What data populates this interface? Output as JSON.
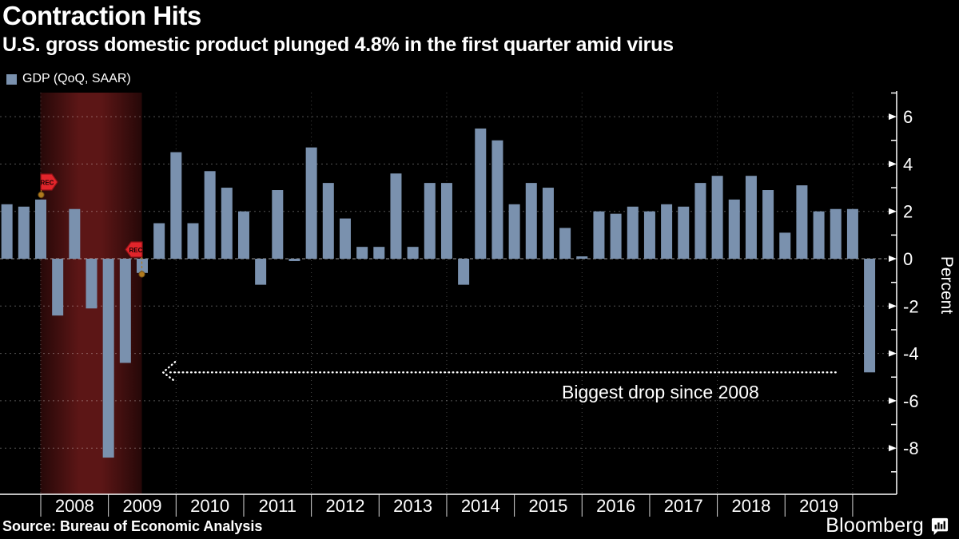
{
  "header": {
    "title": "Contraction Hits",
    "subtitle": "U.S. gross domestic product plunged 4.8% in the first quarter amid virus"
  },
  "legend": {
    "label": "GDP (QoQ, SAAR)"
  },
  "annotation": {
    "text": "Biggest drop since 2008"
  },
  "footer": {
    "source": "Source: Bureau of Economic Analysis",
    "brand": "Bloomberg"
  },
  "colors": {
    "background": "#000000",
    "bar": "#7a91ae",
    "recession_mid": "#5c1616",
    "recession_edge": "#260808",
    "flag_red": "#e2252b",
    "flag_border": "#8f1216",
    "marker_amber": "#b07a1e",
    "marker_amber_edge": "#6e4c12",
    "grid": "#ffffff",
    "axis": "#ffffff",
    "text": "#ffffff"
  },
  "chart_data": {
    "type": "bar",
    "title": "Contraction Hits",
    "subtitle": "U.S. gross domestic product plunged 4.8% in the first quarter amid virus",
    "series_name": "GDP (QoQ, SAAR)",
    "ylabel": "Percent",
    "ylim": [
      -10,
      7
    ],
    "yticks": [
      6,
      4,
      2,
      0,
      -2,
      -4,
      -6,
      -8
    ],
    "grid": true,
    "legend_position": "top-left",
    "categories": [
      "2007Q2",
      "2007Q3",
      "2007Q4",
      "2008Q1",
      "2008Q2",
      "2008Q3",
      "2008Q4",
      "2009Q1",
      "2009Q2",
      "2009Q3",
      "2009Q4",
      "2010Q1",
      "2010Q2",
      "2010Q3",
      "2010Q4",
      "2011Q1",
      "2011Q2",
      "2011Q3",
      "2011Q4",
      "2012Q1",
      "2012Q2",
      "2012Q3",
      "2012Q4",
      "2013Q1",
      "2013Q2",
      "2013Q3",
      "2013Q4",
      "2014Q1",
      "2014Q2",
      "2014Q3",
      "2014Q4",
      "2015Q1",
      "2015Q2",
      "2015Q3",
      "2015Q4",
      "2016Q1",
      "2016Q2",
      "2016Q3",
      "2016Q4",
      "2017Q1",
      "2017Q2",
      "2017Q3",
      "2017Q4",
      "2018Q1",
      "2018Q2",
      "2018Q3",
      "2018Q4",
      "2019Q1",
      "2019Q2",
      "2019Q3",
      "2019Q4",
      "2020Q1"
    ],
    "values": [
      2.3,
      2.2,
      2.5,
      -2.4,
      2.1,
      -2.1,
      -8.4,
      -4.4,
      -0.6,
      1.5,
      4.5,
      1.5,
      3.7,
      3.0,
      2.0,
      -1.1,
      2.9,
      -0.1,
      4.7,
      3.2,
      1.7,
      0.5,
      0.5,
      3.6,
      0.5,
      3.2,
      3.2,
      -1.1,
      5.5,
      5.0,
      2.3,
      3.2,
      3.0,
      1.3,
      0.1,
      2.0,
      1.9,
      2.2,
      2.0,
      2.3,
      2.2,
      3.2,
      3.5,
      2.5,
      3.5,
      2.9,
      1.1,
      3.1,
      2.0,
      2.1,
      2.1,
      -4.8
    ],
    "xtick_years": [
      2008,
      2009,
      2010,
      2011,
      2012,
      2013,
      2014,
      2015,
      2016,
      2017,
      2018,
      2019
    ],
    "recession_band": {
      "start_year_frac": 2008.0,
      "end_year_frac": 2009.5,
      "start_label": "REC",
      "end_label": "REC"
    },
    "annotations": [
      {
        "text": "Biggest drop since 2008",
        "y_value": -4.8,
        "x_from_year": 2009.82,
        "x_to_year": 2019.77
      }
    ]
  }
}
